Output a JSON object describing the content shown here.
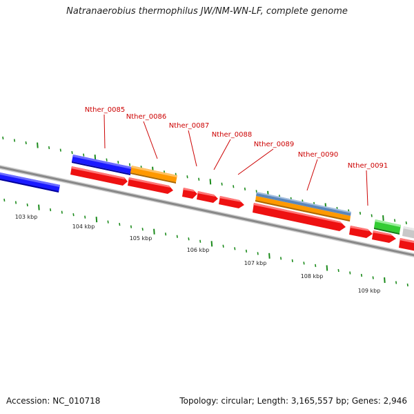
{
  "title": "Natranaerobius thermophilus JW/NM-WN-LF, complete genome",
  "accession": "Accession: NC_010718",
  "topology": "Topology: circular; Length: 3,165,557 bp; Genes: 2,946",
  "colors": {
    "gene_label": "#cc0000",
    "backbone": "#808080",
    "tick": "#1a8a1a",
    "forward_blue": "#1a1aff",
    "orange": "#ff9900",
    "red": "#ee1111",
    "steel_blue": "#5b86bb",
    "green": "#33cc33",
    "grey": "#c0c0c0"
  },
  "gene_labels": [
    "Nther_0085",
    "Nther_0086",
    "Nther_0087",
    "Nther_0088",
    "Nther_0089",
    "Nther_0090",
    "Nther_0091"
  ],
  "kbp_labels": [
    "103 kbp",
    "104 kbp",
    "105 kbp",
    "106 kbp",
    "107 kbp",
    "108 kbp",
    "109 kbp"
  ]
}
